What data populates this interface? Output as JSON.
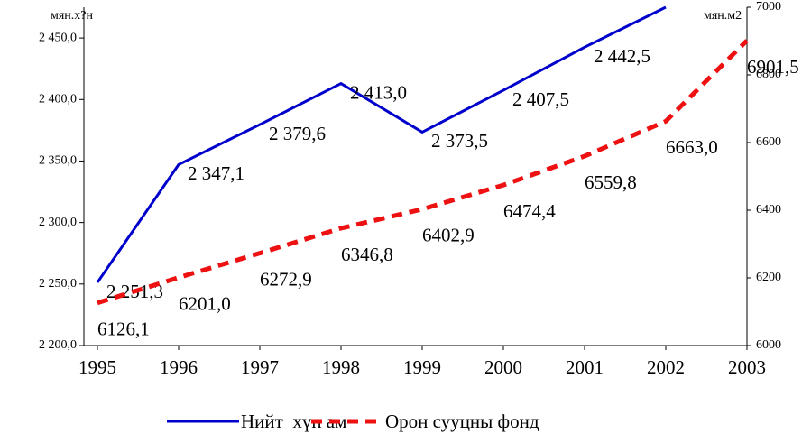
{
  "chart_data": {
    "type": "line",
    "y_label": "мян.х?н",
    "y2_label": "мян.м2",
    "categories": [
      "1995",
      "1996",
      "1997",
      "1998",
      "1999",
      "2000",
      "2001",
      "2002",
      "2003"
    ],
    "series": [
      {
        "name": "Нийт  хүн ам",
        "color": "#0000cc",
        "dash": false,
        "values": [
          2251.3,
          2347.1,
          2379.6,
          2413.0,
          2373.5,
          2407.5,
          2442.5,
          2475,
          null
        ],
        "value_labels": [
          "2 251,3",
          "2 347,1",
          "2 379,6",
          "2 413,0",
          "2 373,5",
          "2 407,5",
          "2 442,5",
          null,
          null
        ]
      },
      {
        "name": "Орон сууцны фонд",
        "color": "#ee1111",
        "dash": true,
        "axis": "y2",
        "values": [
          6126.1,
          6201.0,
          6272.9,
          6346.8,
          6402.9,
          6474.4,
          6559.8,
          6663.0,
          6901.5
        ],
        "value_labels": [
          "6126,1",
          "6201,0",
          "6272,9",
          "6346,8",
          "6402,9",
          "6474,4",
          "6559,8",
          "6663,0",
          "6901,5"
        ]
      }
    ],
    "ylim": [
      2200,
      2475
    ],
    "yticks": [
      {
        "value": 2200,
        "label": "2 200,0"
      },
      {
        "value": 2250,
        "label": "2 250,0"
      },
      {
        "value": 2300,
        "label": "2 300,0"
      },
      {
        "value": 2350,
        "label": "2 350,0"
      },
      {
        "value": 2400,
        "label": "2 400,0"
      },
      {
        "value": 2450,
        "label": "2 450,0"
      }
    ],
    "y2lim": [
      6000,
      7000
    ],
    "y2ticks": [
      6000,
      6200,
      6400,
      6600,
      6800,
      7000
    ],
    "legend": "bottom",
    "grid": false
  }
}
